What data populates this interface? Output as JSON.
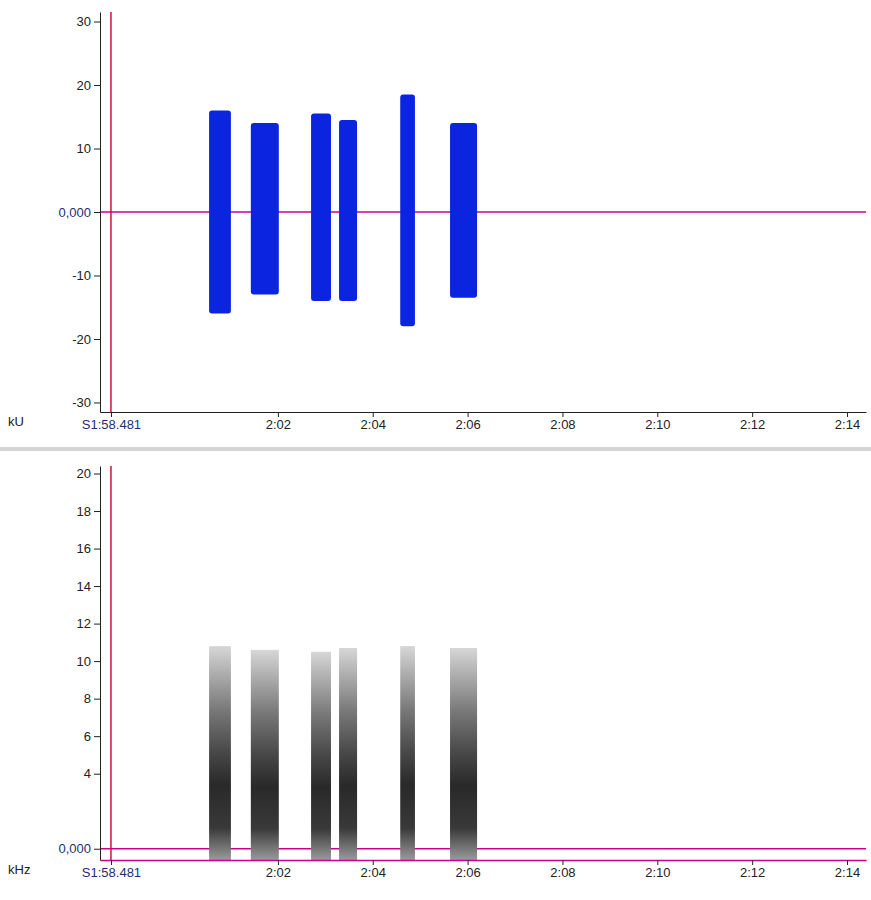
{
  "chart_data": [
    {
      "type": "waveform",
      "y_label": "kU",
      "color": "#0b24e0",
      "xlim": [
        118.25,
        134.4
      ],
      "xticks": [
        {
          "value": 118.481,
          "label": "S1:58.481"
        },
        {
          "value": 122,
          "label": "2:02"
        },
        {
          "value": 124,
          "label": "2:04"
        },
        {
          "value": 126,
          "label": "2:06"
        },
        {
          "value": 128,
          "label": "2:08"
        },
        {
          "value": 130,
          "label": "2:10"
        },
        {
          "value": 132,
          "label": "2:12"
        },
        {
          "value": 134,
          "label": "2:14"
        }
      ],
      "ylim": [
        -31.5,
        31.5
      ],
      "yticks": [
        -30,
        -20,
        -10,
        {
          "value": 0,
          "label": "0,000"
        },
        10,
        20,
        30
      ],
      "bursts": [
        {
          "start": 120.55,
          "end": 121.01,
          "max": 16,
          "min": -16
        },
        {
          "start": 121.43,
          "end": 122.02,
          "max": 14,
          "min": -13
        },
        {
          "start": 122.7,
          "end": 123.12,
          "max": 15.5,
          "min": -14
        },
        {
          "start": 123.29,
          "end": 123.67,
          "max": 14.5,
          "min": -14
        },
        {
          "start": 124.58,
          "end": 124.89,
          "max": 18.5,
          "min": -18
        },
        {
          "start": 125.63,
          "end": 126.2,
          "max": 14,
          "min": -13.5
        }
      ]
    },
    {
      "type": "spectrogram",
      "y_label": "kHz",
      "color": "#1e1e1e",
      "xlim": [
        118.25,
        134.4
      ],
      "xticks": [
        {
          "value": 118.481,
          "label": "S1:58.481"
        },
        {
          "value": 122,
          "label": "2:02"
        },
        {
          "value": 124,
          "label": "2:04"
        },
        {
          "value": 126,
          "label": "2:06"
        },
        {
          "value": 128,
          "label": "2:08"
        },
        {
          "value": 130,
          "label": "2:10"
        },
        {
          "value": 132,
          "label": "2:12"
        },
        {
          "value": 134,
          "label": "2:14"
        }
      ],
      "ylim": [
        -0.6,
        20.4
      ],
      "yticks": [
        {
          "value": 0,
          "label": "0,000"
        },
        4,
        6,
        8,
        10,
        12,
        14,
        16,
        18,
        20
      ],
      "bursts": [
        {
          "start": 120.55,
          "end": 121.01,
          "fmax": 10.8
        },
        {
          "start": 121.43,
          "end": 122.02,
          "fmax": 10.6
        },
        {
          "start": 122.7,
          "end": 123.12,
          "fmax": 10.5
        },
        {
          "start": 123.29,
          "end": 123.67,
          "fmax": 10.7
        },
        {
          "start": 124.58,
          "end": 124.89,
          "fmax": 10.8
        },
        {
          "start": 125.63,
          "end": 126.2,
          "fmax": 10.7
        }
      ]
    }
  ]
}
